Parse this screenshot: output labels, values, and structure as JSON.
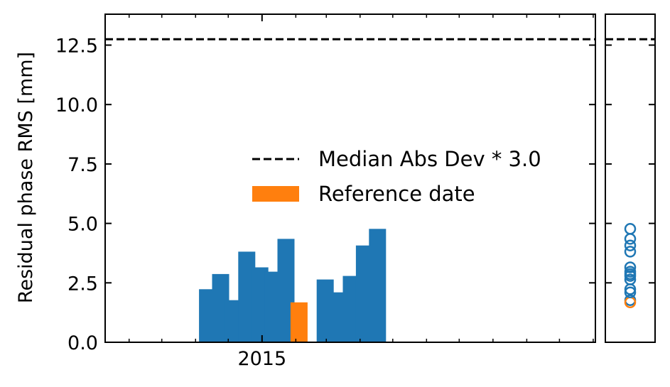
{
  "chart_data": {
    "type": "bar",
    "ylabel": "Residual phase RMS [mm]",
    "xlabel": "",
    "ylim": [
      0,
      13.8
    ],
    "yticks": [
      0.0,
      2.5,
      5.0,
      7.5,
      10.0,
      12.5
    ],
    "ytick_labels": [
      "0.0",
      "2.5",
      "5.0",
      "7.5",
      "10.0",
      "12.5"
    ],
    "x_tick_labels": [
      {
        "date": "2015-01-01",
        "label": "2015"
      }
    ],
    "xlim": [
      "2014-08-10",
      "2015-11-03"
    ],
    "grid": false,
    "legend_position": "center",
    "threshold": {
      "label": "Median Abs Dev * 3.0",
      "value": 12.75,
      "style": "dashed",
      "color": "#000000"
    },
    "reference": {
      "label": "Reference date",
      "color": "#ff7f0e"
    },
    "bar_color": "#1f77b4",
    "bars": [
      {
        "date": "2014-11-12",
        "value": 2.23
      },
      {
        "date": "2014-11-24",
        "value": 2.87
      },
      {
        "date": "2014-12-06",
        "value": 1.77
      },
      {
        "date": "2014-12-18",
        "value": 3.81
      },
      {
        "date": "2014-12-30",
        "value": 3.15
      },
      {
        "date": "2015-01-11",
        "value": 2.97
      },
      {
        "date": "2015-01-23",
        "value": 4.35
      },
      {
        "date": "2015-02-04",
        "value": 1.68,
        "reference": true
      },
      {
        "date": "2015-02-28",
        "value": 2.64
      },
      {
        "date": "2015-03-12",
        "value": 2.1
      },
      {
        "date": "2015-03-24",
        "value": 2.79
      },
      {
        "date": "2015-04-05",
        "value": 4.07
      },
      {
        "date": "2015-04-17",
        "value": 4.77
      }
    ]
  }
}
